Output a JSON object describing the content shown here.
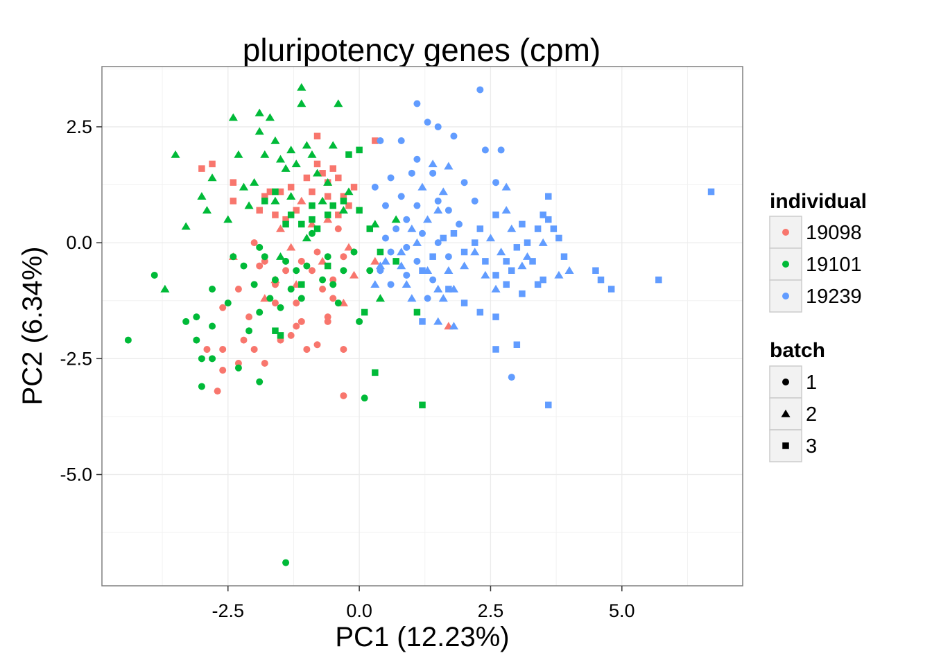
{
  "chart_data": {
    "type": "scatter",
    "title": "pluripotency genes (cpm)",
    "xlabel": "PC1 (12.23%)",
    "ylabel": "PC2 (6.34%)",
    "xlim": [
      -4.9,
      7.3
    ],
    "ylim": [
      -7.4,
      3.8
    ],
    "x_ticks": [
      -2.5,
      0.0,
      2.5,
      5.0
    ],
    "x_tick_labels": [
      "-2.5",
      "0.0",
      "2.5",
      "5.0"
    ],
    "y_ticks": [
      2.5,
      0.0,
      -2.5,
      -5.0
    ],
    "y_tick_labels": [
      "2.5",
      "0.0",
      "-2.5",
      "-5.0"
    ],
    "grid": true,
    "legend_position": "right",
    "color_legend": {
      "title": "individual",
      "entries": [
        {
          "label": "19098",
          "color": "#F8766D"
        },
        {
          "label": "19101",
          "color": "#00BA38"
        },
        {
          "label": "19239",
          "color": "#619CFF"
        }
      ]
    },
    "shape_legend": {
      "title": "batch",
      "entries": [
        {
          "label": "1",
          "shape": "circle"
        },
        {
          "label": "2",
          "shape": "triangle"
        },
        {
          "label": "3",
          "shape": "square"
        }
      ]
    },
    "series": [
      {
        "individual": "19098",
        "batch": "1",
        "points": [
          [
            -2.6,
            -2.3
          ],
          [
            -2.6,
            -2.75
          ],
          [
            -2.7,
            -3.2
          ],
          [
            -2.9,
            -2.3
          ],
          [
            -2.3,
            -2.6
          ],
          [
            -2.2,
            -2.1
          ],
          [
            -2.0,
            -2.3
          ],
          [
            -1.8,
            -2.6
          ],
          [
            -1.5,
            -2.1
          ],
          [
            -1.3,
            -2.0
          ],
          [
            -1.1,
            -1.7
          ],
          [
            -1.0,
            -2.3
          ],
          [
            -0.8,
            -2.2
          ],
          [
            -0.6,
            -1.7
          ],
          [
            -0.3,
            -2.3
          ],
          [
            -0.3,
            -3.3
          ],
          [
            -2.3,
            -1.0
          ],
          [
            -2.1,
            -1.6
          ],
          [
            -1.9,
            -0.5
          ],
          [
            -1.6,
            -0.9
          ],
          [
            -1.4,
            -0.6
          ],
          [
            -1.2,
            -1.3
          ],
          [
            -1.1,
            -0.4
          ],
          [
            -0.9,
            -0.6
          ],
          [
            -0.7,
            -1.0
          ],
          [
            -0.6,
            -1.6
          ],
          [
            -0.5,
            -0.8
          ],
          [
            -0.3,
            -0.3
          ],
          [
            -2.6,
            -1.4
          ],
          [
            -1.6,
            -1.3
          ],
          [
            -1.2,
            -1.8
          ],
          [
            -2.0,
            0.0
          ],
          [
            -1.8,
            -0.4
          ],
          [
            -0.8,
            -0.2
          ],
          [
            -0.5,
            -1.2
          ],
          [
            -0.4,
            0.3
          ]
        ]
      },
      {
        "individual": "19098",
        "batch": "2",
        "points": [
          [
            -1.6,
            -0.8
          ],
          [
            -1.8,
            -1.2
          ],
          [
            -1.2,
            -0.9
          ],
          [
            -0.7,
            -0.4
          ],
          [
            -0.3,
            -1.3
          ],
          [
            -0.1,
            -0.7
          ],
          [
            0.3,
            -0.4
          ],
          [
            -0.2,
            -0.1
          ],
          [
            -2.4,
            -0.3
          ],
          [
            -1.3,
            -0.1
          ],
          [
            -0.9,
            0.4
          ],
          [
            -1.5,
            0.3
          ],
          [
            -1.1,
            0.9
          ],
          [
            -0.6,
            0.5
          ],
          [
            1.7,
            -1.8
          ]
        ]
      },
      {
        "individual": "19098",
        "batch": "3",
        "points": [
          [
            -3.0,
            1.6
          ],
          [
            -2.8,
            1.7
          ],
          [
            -2.4,
            1.3
          ],
          [
            -2.4,
            0.9
          ],
          [
            -1.8,
            1.0
          ],
          [
            -1.5,
            1.1
          ],
          [
            -1.3,
            1.2
          ],
          [
            -1.0,
            1.4
          ],
          [
            -0.8,
            1.7
          ],
          [
            -0.8,
            2.3
          ],
          [
            -0.7,
            1.5
          ],
          [
            -0.5,
            1.6
          ],
          [
            -0.4,
            1.4
          ],
          [
            -0.1,
            1.2
          ],
          [
            -0.6,
            1.0
          ],
          [
            -0.2,
            0.8
          ],
          [
            -1.2,
            0.7
          ],
          [
            -1.6,
            0.6
          ],
          [
            -0.4,
            0.6
          ],
          [
            0.3,
            2.2
          ],
          [
            -1.9,
            0.7
          ],
          [
            -1.4,
            0.5
          ],
          [
            -0.9,
            1.1
          ],
          [
            -0.6,
            1.3
          ],
          [
            -0.3,
            1.0
          ],
          [
            -1.7,
            1.1
          ]
        ]
      },
      {
        "individual": "19101",
        "batch": "1",
        "points": [
          [
            -4.4,
            -2.1
          ],
          [
            -3.9,
            -0.7
          ],
          [
            -3.3,
            -1.7
          ],
          [
            -3.1,
            -1.6
          ],
          [
            -3.1,
            -2.1
          ],
          [
            -3.0,
            -2.5
          ],
          [
            -3.0,
            -3.1
          ],
          [
            -2.8,
            -2.5
          ],
          [
            -2.8,
            -1.8
          ],
          [
            -2.3,
            -2.7
          ],
          [
            -1.9,
            -3.0
          ],
          [
            -2.5,
            -1.3
          ],
          [
            -2.4,
            -0.3
          ],
          [
            -2.2,
            -0.5
          ],
          [
            -2.0,
            -0.9
          ],
          [
            -1.9,
            -1.5
          ],
          [
            -1.7,
            -1.2
          ],
          [
            -1.6,
            -0.8
          ],
          [
            -1.4,
            -0.4
          ],
          [
            -1.3,
            -1.0
          ],
          [
            -1.1,
            -1.2
          ],
          [
            -1.0,
            -0.5
          ],
          [
            -0.9,
            0.2
          ],
          [
            -0.7,
            -0.8
          ],
          [
            -0.6,
            -0.3
          ],
          [
            -0.4,
            -1.3
          ],
          [
            -0.3,
            -0.6
          ],
          [
            -0.1,
            -0.2
          ],
          [
            0.0,
            -1.7
          ],
          [
            0.1,
            -3.35
          ],
          [
            0.2,
            -0.6
          ],
          [
            -1.4,
            -6.9
          ],
          [
            -2.8,
            -1.0
          ],
          [
            -1.8,
            -0.3
          ],
          [
            -1.2,
            -0.6
          ],
          [
            -0.5,
            -0.9
          ],
          [
            -1.9,
            -0.1
          ],
          [
            -2.1,
            -1.9
          ],
          [
            -1.5,
            -1.4
          ]
        ]
      },
      {
        "individual": "19101",
        "batch": "2",
        "points": [
          [
            -3.5,
            1.9
          ],
          [
            -3.3,
            0.35
          ],
          [
            -3.0,
            1.0
          ],
          [
            -2.9,
            0.7
          ],
          [
            -2.8,
            1.4
          ],
          [
            -2.4,
            2.7
          ],
          [
            -2.3,
            1.9
          ],
          [
            -2.2,
            1.2
          ],
          [
            -2.1,
            0.8
          ],
          [
            -2.0,
            1.3
          ],
          [
            -1.9,
            2.4
          ],
          [
            -1.8,
            1.9
          ],
          [
            -1.7,
            2.7
          ],
          [
            -1.6,
            2.2
          ],
          [
            -1.5,
            1.8
          ],
          [
            -1.4,
            1.6
          ],
          [
            -1.3,
            2.0
          ],
          [
            -1.2,
            1.7
          ],
          [
            -1.1,
            3.35
          ],
          [
            -1.0,
            2.1
          ],
          [
            -0.9,
            1.9
          ],
          [
            -0.8,
            1.5
          ],
          [
            -0.6,
            1.3
          ],
          [
            -0.5,
            2.1
          ],
          [
            -0.4,
            3.0
          ],
          [
            -1.1,
            3.0
          ],
          [
            -3.7,
            -1.0
          ],
          [
            -1.9,
            2.8
          ],
          [
            -2.5,
            0.5
          ],
          [
            -1.6,
            0.9
          ],
          [
            -1.3,
            1.0
          ],
          [
            -0.7,
            0.9
          ],
          [
            -0.3,
            0.7
          ],
          [
            0.3,
            0.4
          ],
          [
            -0.2,
            1.1
          ],
          [
            0.4,
            -1.2
          ],
          [
            -1.0,
            0.1
          ],
          [
            -1.5,
            -0.3
          ],
          [
            0.7,
            0.5
          ]
        ]
      },
      {
        "individual": "19101",
        "batch": "3",
        "points": [
          [
            -1.8,
            0.9
          ],
          [
            -1.6,
            1.1
          ],
          [
            -1.4,
            0.4
          ],
          [
            -1.3,
            0.6
          ],
          [
            -1.1,
            0.4
          ],
          [
            -0.9,
            0.8
          ],
          [
            -0.8,
            0.3
          ],
          [
            -0.6,
            0.6
          ],
          [
            -0.5,
            0.8
          ],
          [
            -0.3,
            0.9
          ],
          [
            0.0,
            2.0
          ],
          [
            -0.2,
            1.9
          ],
          [
            0.0,
            0.7
          ],
          [
            0.2,
            0.3
          ],
          [
            0.1,
            -1.5
          ],
          [
            0.3,
            -2.8
          ],
          [
            1.1,
            -1.5
          ],
          [
            1.2,
            -3.5
          ],
          [
            0.7,
            -0.4
          ],
          [
            0.4,
            -0.2
          ],
          [
            -1.1,
            -0.9
          ],
          [
            -1.5,
            -2.0
          ],
          [
            -1.6,
            -1.9
          ],
          [
            -0.9,
            0.5
          ],
          [
            -0.6,
            -0.5
          ]
        ]
      },
      {
        "individual": "19239",
        "batch": "1",
        "points": [
          [
            2.3,
            3.3
          ],
          [
            1.1,
            3.0
          ],
          [
            1.3,
            2.6
          ],
          [
            1.5,
            2.5
          ],
          [
            1.8,
            2.3
          ],
          [
            2.4,
            2.0
          ],
          [
            2.7,
            2.0
          ],
          [
            0.8,
            2.2
          ],
          [
            0.4,
            2.2
          ],
          [
            1.1,
            1.8
          ],
          [
            1.4,
            1.5
          ],
          [
            1.0,
            1.5
          ],
          [
            0.6,
            1.4
          ],
          [
            0.3,
            1.2
          ],
          [
            0.5,
            0.8
          ],
          [
            0.8,
            1.0
          ],
          [
            1.1,
            0.8
          ],
          [
            1.5,
            0.9
          ],
          [
            1.7,
            0.7
          ],
          [
            2.0,
            1.3
          ],
          [
            2.2,
            0.9
          ],
          [
            2.6,
            1.3
          ],
          [
            0.5,
            0.1
          ],
          [
            0.7,
            0.3
          ],
          [
            0.9,
            -0.1
          ],
          [
            1.2,
            0.2
          ],
          [
            1.5,
            0.0
          ],
          [
            1.7,
            -0.3
          ],
          [
            1.9,
            0.4
          ],
          [
            0.4,
            -0.6
          ],
          [
            0.6,
            -0.9
          ],
          [
            0.9,
            -0.7
          ],
          [
            1.1,
            -0.4
          ],
          [
            1.3,
            -1.2
          ],
          [
            0.9,
            0.5
          ],
          [
            2.9,
            -2.9
          ],
          [
            0.6,
            -0.2
          ],
          [
            1.4,
            -0.8
          ]
        ]
      },
      {
        "individual": "19239",
        "batch": "2",
        "points": [
          [
            1.7,
            1.65
          ],
          [
            1.4,
            1.7
          ],
          [
            1.2,
            1.2
          ],
          [
            1.6,
            1.1
          ],
          [
            1.5,
            0.7
          ],
          [
            1.3,
            0.5
          ],
          [
            1.1,
            0.0
          ],
          [
            0.8,
            -0.2
          ],
          [
            0.5,
            -0.4
          ],
          [
            0.3,
            -0.9
          ],
          [
            0.8,
            -0.5
          ],
          [
            0.9,
            -0.9
          ],
          [
            1.0,
            -1.2
          ],
          [
            1.3,
            -0.6
          ],
          [
            1.5,
            -1.0
          ],
          [
            1.7,
            -0.6
          ],
          [
            1.8,
            -1.0
          ],
          [
            2.0,
            -0.5
          ],
          [
            2.2,
            -0.2
          ],
          [
            2.4,
            -0.7
          ],
          [
            2.6,
            -1.0
          ],
          [
            1.5,
            -1.7
          ],
          [
            1.8,
            -1.8
          ],
          [
            2.8,
            1.2
          ],
          [
            2.8,
            0.7
          ],
          [
            2.5,
            0.1
          ],
          [
            3.2,
            -0.3
          ],
          [
            3.5,
            0.0
          ],
          [
            3.8,
            -0.7
          ],
          [
            4.0,
            -0.6
          ],
          [
            1.6,
            -1.2
          ],
          [
            2.9,
            0.3
          ],
          [
            3.1,
            -0.5
          ],
          [
            2.7,
            -0.2
          ],
          [
            0.4,
            -0.5
          ],
          [
            1.0,
            0.3
          ]
        ]
      },
      {
        "individual": "19239",
        "batch": "3",
        "points": [
          [
            6.7,
            1.1
          ],
          [
            5.7,
            -0.8
          ],
          [
            4.8,
            -1.0
          ],
          [
            4.6,
            -0.8
          ],
          [
            4.5,
            -0.6
          ],
          [
            3.6,
            1.0
          ],
          [
            3.6,
            -3.5
          ],
          [
            3.0,
            -2.2
          ],
          [
            2.6,
            -2.3
          ],
          [
            2.6,
            -1.6
          ],
          [
            2.3,
            -1.5
          ],
          [
            2.0,
            -1.3
          ],
          [
            1.7,
            -1.0
          ],
          [
            3.1,
            0.4
          ],
          [
            3.4,
            0.3
          ],
          [
            3.6,
            0.5
          ],
          [
            3.7,
            0.3
          ],
          [
            3.8,
            0.1
          ],
          [
            3.9,
            -0.3
          ],
          [
            3.5,
            -0.8
          ],
          [
            3.3,
            -0.4
          ],
          [
            3.0,
            -0.1
          ],
          [
            2.8,
            -0.4
          ],
          [
            2.6,
            -0.7
          ],
          [
            2.4,
            -0.4
          ],
          [
            2.2,
            0.0
          ],
          [
            2.0,
            -0.2
          ],
          [
            1.8,
            0.2
          ],
          [
            1.6,
            0.1
          ],
          [
            1.4,
            -0.3
          ],
          [
            1.2,
            -0.6
          ],
          [
            2.8,
            -0.9
          ],
          [
            3.1,
            -1.1
          ],
          [
            3.4,
            -0.9
          ],
          [
            1.2,
            -1.7
          ],
          [
            2.3,
            0.3
          ],
          [
            2.6,
            0.6
          ],
          [
            2.9,
            -0.6
          ],
          [
            3.2,
            0.0
          ],
          [
            3.5,
            0.6
          ]
        ]
      }
    ]
  }
}
